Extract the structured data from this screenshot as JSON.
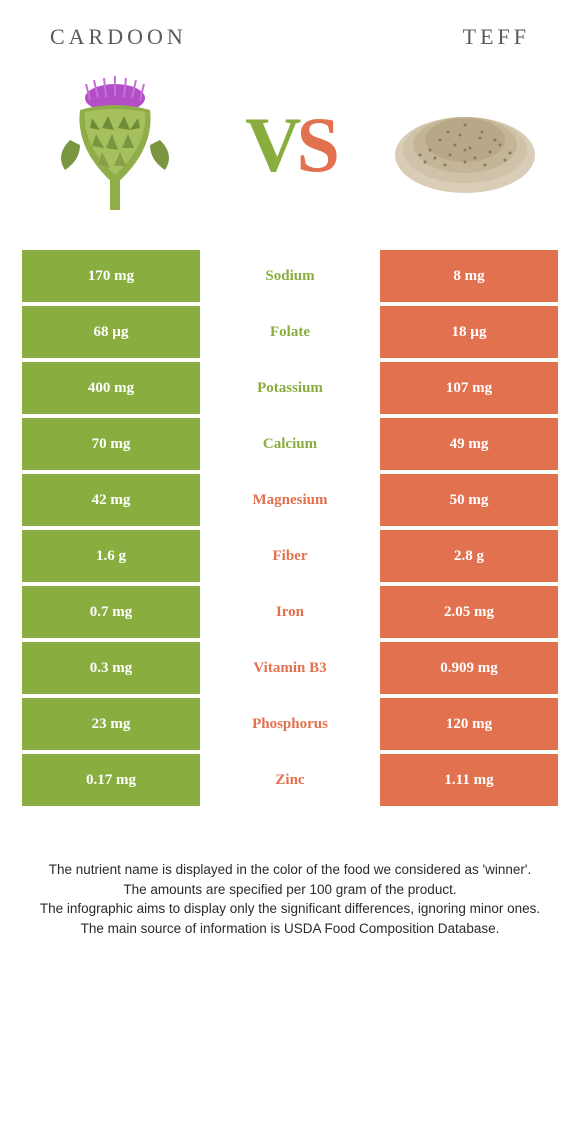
{
  "header": {
    "left_title": "CARDOON",
    "right_title": "TEFF"
  },
  "vs": {
    "v": "V",
    "s": "S"
  },
  "colors": {
    "green": "#8aad3f",
    "orange": "#e2714f",
    "green_text": "#8aad3f",
    "orange_text": "#e2714f"
  },
  "table": {
    "rows": [
      {
        "left": "170 mg",
        "mid": "Sodium",
        "right": "8 mg",
        "winner": "left"
      },
      {
        "left": "68 µg",
        "mid": "Folate",
        "right": "18 µg",
        "winner": "left"
      },
      {
        "left": "400 mg",
        "mid": "Potassium",
        "right": "107 mg",
        "winner": "left"
      },
      {
        "left": "70 mg",
        "mid": "Calcium",
        "right": "49 mg",
        "winner": "left"
      },
      {
        "left": "42 mg",
        "mid": "Magnesium",
        "right": "50 mg",
        "winner": "right"
      },
      {
        "left": "1.6 g",
        "mid": "Fiber",
        "right": "2.8 g",
        "winner": "right"
      },
      {
        "left": "0.7 mg",
        "mid": "Iron",
        "right": "2.05 mg",
        "winner": "right"
      },
      {
        "left": "0.3 mg",
        "mid": "Vitamin B3",
        "right": "0.909 mg",
        "winner": "right"
      },
      {
        "left": "23 mg",
        "mid": "Phosphorus",
        "right": "120 mg",
        "winner": "right"
      },
      {
        "left": "0.17 mg",
        "mid": "Zinc",
        "right": "1.11 mg",
        "winner": "right"
      }
    ]
  },
  "footer": {
    "line1": "The nutrient name is displayed in the color of the food we considered as 'winner'.",
    "line2": "The amounts are specified per 100 gram of the product.",
    "line3": "The infographic aims to display only the significant differences, ignoring minor ones.",
    "line4": "The main source of information is USDA Food Composition Database."
  }
}
